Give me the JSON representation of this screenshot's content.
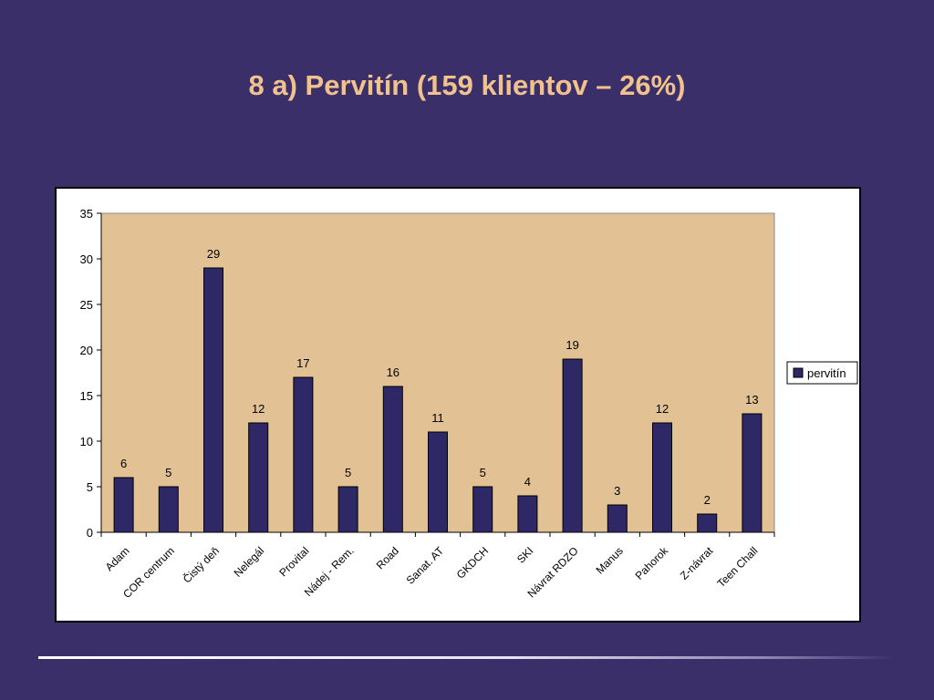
{
  "slide": {
    "title": "8 a) Pervitín  (159 klientov – 26%)"
  },
  "colors": {
    "background": "#3a2f68",
    "title": "#f2c28e",
    "plot_area": "#e2c295",
    "bar": "#2e2966"
  },
  "chart_data": {
    "type": "bar",
    "title": "",
    "xlabel": "",
    "ylabel": "",
    "categories": [
      "Adam",
      "COR centrum",
      "Čistý deň",
      "Nelegál",
      "Provital",
      "Nádej - Rem.",
      "Road",
      "Sanat. AT",
      "GKDCH",
      "SKI",
      "Návrat RDZO",
      "Manus",
      "Pahorok",
      "Z-návrat",
      "Teen Chall"
    ],
    "series": [
      {
        "name": "pervitín",
        "values": [
          6,
          5,
          29,
          12,
          17,
          5,
          16,
          11,
          5,
          4,
          19,
          3,
          12,
          2,
          13
        ]
      }
    ],
    "ylim": [
      0,
      35
    ],
    "yticks": [
      0,
      5,
      10,
      15,
      20,
      25,
      30,
      35
    ],
    "grid": false,
    "data_labels": true,
    "legend_position": "right"
  }
}
